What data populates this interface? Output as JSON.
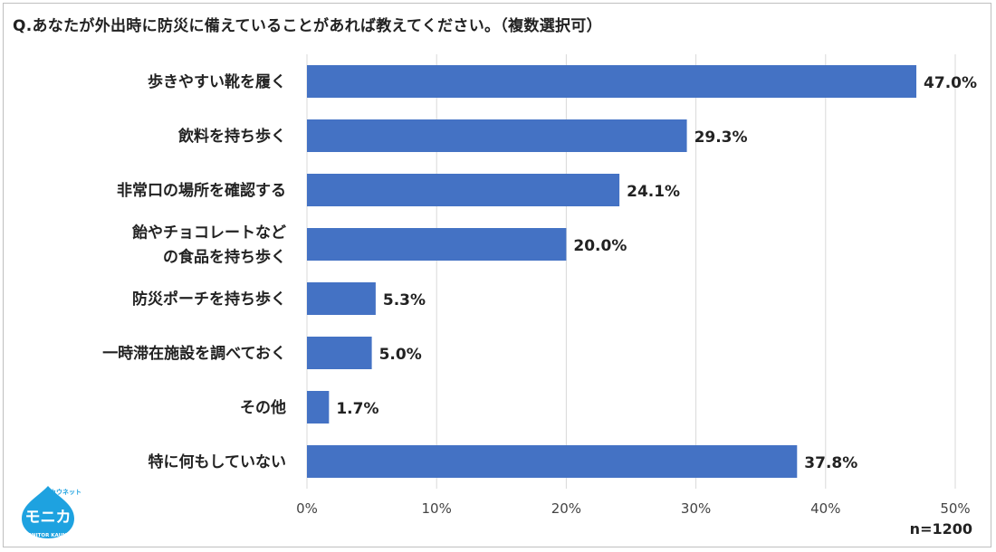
{
  "title": "Q.あなたが外出時に防災に備えていることがあれば教えてください。（複数選択可）",
  "sample_size": "n=1200",
  "logo": {
    "top_text": "カウネット",
    "main_text": "モニカ",
    "bottom_text": "MONITOR KAUNET"
  },
  "colors": {
    "bar": "#4472C4",
    "grid": "#d9d9d9"
  },
  "chart_data": {
    "type": "bar",
    "orientation": "horizontal",
    "categories": [
      [
        "歩きやすい靴を履く"
      ],
      [
        "飲料を持ち歩く"
      ],
      [
        "非常口の場所を確認する"
      ],
      [
        "飴やチョコレートなど",
        "の食品を持ち歩く"
      ],
      [
        "防災ポーチを持ち歩く"
      ],
      [
        "一時滞在施設を調べておく"
      ],
      [
        "その他"
      ],
      [
        "特に何もしていない"
      ]
    ],
    "values": [
      47.0,
      29.3,
      24.1,
      20.0,
      5.3,
      5.0,
      1.7,
      37.8
    ],
    "value_labels": [
      "47.0%",
      "29.3%",
      "24.1%",
      "20.0%",
      "5.3%",
      "5.0%",
      "1.7%",
      "37.8%"
    ],
    "xlim": [
      0,
      50
    ],
    "xticks": [
      "0%",
      "10%",
      "20%",
      "30%",
      "40%",
      "50%"
    ],
    "grid": true
  }
}
